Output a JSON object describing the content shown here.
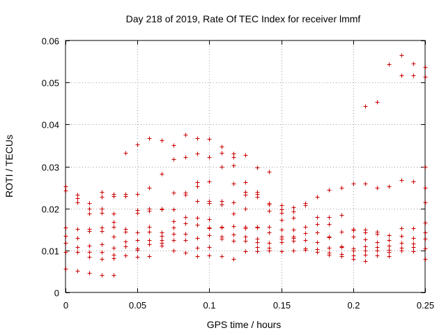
{
  "chart_data": {
    "type": "scatter",
    "title": "Day 218 of 2019, Rate Of TEC Index for receiver lmmf",
    "xlabel": "GPS time / hours",
    "ylabel": "ROTI / TECUs",
    "xlim": [
      0,
      0.25
    ],
    "ylim": [
      0,
      0.06
    ],
    "xticks": [
      "0",
      "0.05",
      "0.1",
      "0.15",
      "0.2",
      "0.25"
    ],
    "yticks": [
      "0",
      "0.01",
      "0.02",
      "0.03",
      "0.04",
      "0.05",
      "0.06"
    ],
    "grid": true,
    "marker": "+",
    "color": "#cc0000",
    "series": [
      {
        "name": "ROTI",
        "points": [
          [
            0.0,
            0.0253
          ],
          [
            0.0,
            0.0243
          ],
          [
            0.0,
            0.0155
          ],
          [
            0.0,
            0.0135
          ],
          [
            0.0,
            0.0118
          ],
          [
            0.0,
            0.0097
          ],
          [
            0.0,
            0.0056
          ],
          [
            0.0083,
            0.0233
          ],
          [
            0.0083,
            0.0225
          ],
          [
            0.0083,
            0.0215
          ],
          [
            0.0083,
            0.0152
          ],
          [
            0.0083,
            0.013
          ],
          [
            0.0083,
            0.0108
          ],
          [
            0.0083,
            0.0097
          ],
          [
            0.0083,
            0.0051
          ],
          [
            0.0167,
            0.0213
          ],
          [
            0.0167,
            0.02
          ],
          [
            0.0167,
            0.0187
          ],
          [
            0.0167,
            0.0152
          ],
          [
            0.0167,
            0.0147
          ],
          [
            0.0167,
            0.0112
          ],
          [
            0.0167,
            0.0097
          ],
          [
            0.0167,
            0.0085
          ],
          [
            0.0167,
            0.0047
          ],
          [
            0.025,
            0.024
          ],
          [
            0.025,
            0.0227
          ],
          [
            0.025,
            0.02
          ],
          [
            0.025,
            0.019
          ],
          [
            0.025,
            0.0155
          ],
          [
            0.025,
            0.0147
          ],
          [
            0.025,
            0.0115
          ],
          [
            0.025,
            0.0097
          ],
          [
            0.025,
            0.008
          ],
          [
            0.025,
            0.0042
          ],
          [
            0.0333,
            0.0235
          ],
          [
            0.0333,
            0.023
          ],
          [
            0.0333,
            0.0187
          ],
          [
            0.0333,
            0.0168
          ],
          [
            0.0333,
            0.0157
          ],
          [
            0.0333,
            0.0133
          ],
          [
            0.0333,
            0.0107
          ],
          [
            0.0333,
            0.009
          ],
          [
            0.0333,
            0.0081
          ],
          [
            0.0333,
            0.0042
          ],
          [
            0.0417,
            0.0333
          ],
          [
            0.0417,
            0.0234
          ],
          [
            0.0417,
            0.023
          ],
          [
            0.0417,
            0.0152
          ],
          [
            0.0417,
            0.0145
          ],
          [
            0.0417,
            0.0122
          ],
          [
            0.0417,
            0.011
          ],
          [
            0.0417,
            0.0088
          ],
          [
            0.05,
            0.0352
          ],
          [
            0.05,
            0.0235
          ],
          [
            0.05,
            0.0196
          ],
          [
            0.05,
            0.019
          ],
          [
            0.05,
            0.0143
          ],
          [
            0.05,
            0.0125
          ],
          [
            0.05,
            0.0105
          ],
          [
            0.05,
            0.0102
          ],
          [
            0.05,
            0.0085
          ],
          [
            0.0583,
            0.0367
          ],
          [
            0.0583,
            0.025
          ],
          [
            0.0583,
            0.02
          ],
          [
            0.0583,
            0.0195
          ],
          [
            0.0583,
            0.0157
          ],
          [
            0.0583,
            0.0145
          ],
          [
            0.0583,
            0.0125
          ],
          [
            0.0583,
            0.0115
          ],
          [
            0.0583,
            0.0087
          ],
          [
            0.0667,
            0.0362
          ],
          [
            0.0667,
            0.0283
          ],
          [
            0.0667,
            0.02
          ],
          [
            0.0667,
            0.0197
          ],
          [
            0.0667,
            0.0143
          ],
          [
            0.0667,
            0.0135
          ],
          [
            0.0667,
            0.0125
          ],
          [
            0.0667,
            0.0118
          ],
          [
            0.0667,
            0.0112
          ],
          [
            0.075,
            0.035
          ],
          [
            0.075,
            0.0318
          ],
          [
            0.075,
            0.0237
          ],
          [
            0.075,
            0.0198
          ],
          [
            0.075,
            0.017
          ],
          [
            0.075,
            0.0155
          ],
          [
            0.075,
            0.014
          ],
          [
            0.075,
            0.0125
          ],
          [
            0.075,
            0.01
          ],
          [
            0.0833,
            0.0375
          ],
          [
            0.0833,
            0.0323
          ],
          [
            0.0833,
            0.0237
          ],
          [
            0.0833,
            0.0233
          ],
          [
            0.0833,
            0.018
          ],
          [
            0.0833,
            0.0165
          ],
          [
            0.0833,
            0.014
          ],
          [
            0.0833,
            0.0125
          ],
          [
            0.0833,
            0.0095
          ],
          [
            0.0917,
            0.0368
          ],
          [
            0.0917,
            0.033
          ],
          [
            0.0917,
            0.0262
          ],
          [
            0.0917,
            0.0253
          ],
          [
            0.0917,
            0.0217
          ],
          [
            0.0917,
            0.0178
          ],
          [
            0.0917,
            0.0162
          ],
          [
            0.0917,
            0.013
          ],
          [
            0.0917,
            0.0107
          ],
          [
            0.0917,
            0.0087
          ],
          [
            0.1,
            0.0365
          ],
          [
            0.1,
            0.0323
          ],
          [
            0.1,
            0.0265
          ],
          [
            0.1,
            0.0218
          ],
          [
            0.1,
            0.0212
          ],
          [
            0.1,
            0.0175
          ],
          [
            0.1,
            0.0155
          ],
          [
            0.1,
            0.0153
          ],
          [
            0.1,
            0.0137
          ],
          [
            0.1,
            0.0108
          ],
          [
            0.1,
            0.0088
          ],
          [
            0.1083,
            0.0348
          ],
          [
            0.1083,
            0.0332
          ],
          [
            0.1083,
            0.03
          ],
          [
            0.1083,
            0.0218
          ],
          [
            0.1083,
            0.021
          ],
          [
            0.1083,
            0.0157
          ],
          [
            0.1083,
            0.0155
          ],
          [
            0.1083,
            0.0133
          ],
          [
            0.1083,
            0.0128
          ],
          [
            0.1083,
            0.0087
          ],
          [
            0.1167,
            0.033
          ],
          [
            0.1167,
            0.0323
          ],
          [
            0.1167,
            0.0302
          ],
          [
            0.1167,
            0.026
          ],
          [
            0.1167,
            0.0215
          ],
          [
            0.1167,
            0.0188
          ],
          [
            0.1167,
            0.0158
          ],
          [
            0.1167,
            0.0138
          ],
          [
            0.1167,
            0.0123
          ],
          [
            0.1167,
            0.008
          ],
          [
            0.125,
            0.0327
          ],
          [
            0.125,
            0.0263
          ],
          [
            0.125,
            0.024
          ],
          [
            0.125,
            0.0233
          ],
          [
            0.125,
            0.02
          ],
          [
            0.125,
            0.0157
          ],
          [
            0.125,
            0.0153
          ],
          [
            0.125,
            0.0133
          ],
          [
            0.125,
            0.0123
          ],
          [
            0.125,
            0.0098
          ],
          [
            0.1333,
            0.0298
          ],
          [
            0.1333,
            0.024
          ],
          [
            0.1333,
            0.0235
          ],
          [
            0.1333,
            0.0227
          ],
          [
            0.1333,
            0.0157
          ],
          [
            0.1333,
            0.0155
          ],
          [
            0.1333,
            0.0128
          ],
          [
            0.1333,
            0.012
          ],
          [
            0.1333,
            0.0108
          ],
          [
            0.1333,
            0.0098
          ],
          [
            0.1417,
            0.0288
          ],
          [
            0.1417,
            0.0213
          ],
          [
            0.1417,
            0.021
          ],
          [
            0.1417,
            0.0195
          ],
          [
            0.1417,
            0.0157
          ],
          [
            0.1417,
            0.0143
          ],
          [
            0.1417,
            0.0118
          ],
          [
            0.1417,
            0.0107
          ],
          [
            0.1417,
            0.01
          ],
          [
            0.15,
            0.0207
          ],
          [
            0.15,
            0.0198
          ],
          [
            0.15,
            0.019
          ],
          [
            0.15,
            0.0173
          ],
          [
            0.15,
            0.015
          ],
          [
            0.15,
            0.0133
          ],
          [
            0.15,
            0.0128
          ],
          [
            0.15,
            0.012
          ],
          [
            0.15,
            0.0098
          ],
          [
            0.1583,
            0.0203
          ],
          [
            0.1583,
            0.0192
          ],
          [
            0.1583,
            0.0178
          ],
          [
            0.1583,
            0.015
          ],
          [
            0.1583,
            0.0133
          ],
          [
            0.1583,
            0.013
          ],
          [
            0.1583,
            0.0123
          ],
          [
            0.1583,
            0.01
          ],
          [
            0.1667,
            0.0212
          ],
          [
            0.1667,
            0.0208
          ],
          [
            0.1667,
            0.0157
          ],
          [
            0.1667,
            0.0142
          ],
          [
            0.1667,
            0.0125
          ],
          [
            0.1667,
            0.0105
          ],
          [
            0.1667,
            0.0102
          ],
          [
            0.175,
            0.0228
          ],
          [
            0.175,
            0.018
          ],
          [
            0.175,
            0.0163
          ],
          [
            0.175,
            0.0143
          ],
          [
            0.175,
            0.012
          ],
          [
            0.175,
            0.0103
          ],
          [
            0.175,
            0.0097
          ],
          [
            0.1833,
            0.0245
          ],
          [
            0.1833,
            0.018
          ],
          [
            0.1833,
            0.0163
          ],
          [
            0.1833,
            0.0133
          ],
          [
            0.1833,
            0.0132
          ],
          [
            0.1833,
            0.0107
          ],
          [
            0.1833,
            0.0095
          ],
          [
            0.1833,
            0.009
          ],
          [
            0.1917,
            0.025
          ],
          [
            0.1917,
            0.0185
          ],
          [
            0.1917,
            0.0145
          ],
          [
            0.1917,
            0.011
          ],
          [
            0.1917,
            0.0108
          ],
          [
            0.1917,
            0.0092
          ],
          [
            0.1917,
            0.0087
          ],
          [
            0.2,
            0.026
          ],
          [
            0.2,
            0.0152
          ],
          [
            0.2,
            0.0148
          ],
          [
            0.2,
            0.0133
          ],
          [
            0.2,
            0.0105
          ],
          [
            0.2,
            0.01
          ],
          [
            0.2,
            0.0088
          ],
          [
            0.2,
            0.008
          ],
          [
            0.2083,
            0.0443
          ],
          [
            0.2083,
            0.026
          ],
          [
            0.2083,
            0.015
          ],
          [
            0.2083,
            0.0143
          ],
          [
            0.2083,
            0.0127
          ],
          [
            0.2083,
            0.011
          ],
          [
            0.2083,
            0.01
          ],
          [
            0.2083,
            0.009
          ],
          [
            0.2083,
            0.0075
          ],
          [
            0.2167,
            0.0453
          ],
          [
            0.2167,
            0.025
          ],
          [
            0.2167,
            0.0145
          ],
          [
            0.2167,
            0.014
          ],
          [
            0.2167,
            0.012
          ],
          [
            0.2167,
            0.0108
          ],
          [
            0.2167,
            0.01
          ],
          [
            0.2167,
            0.0088
          ],
          [
            0.225,
            0.0543
          ],
          [
            0.225,
            0.0253
          ],
          [
            0.225,
            0.0137
          ],
          [
            0.225,
            0.0125
          ],
          [
            0.225,
            0.0112
          ],
          [
            0.225,
            0.0102
          ],
          [
            0.225,
            0.0097
          ],
          [
            0.225,
            0.0087
          ],
          [
            0.2333,
            0.0565
          ],
          [
            0.2333,
            0.0517
          ],
          [
            0.2333,
            0.0268
          ],
          [
            0.2333,
            0.0153
          ],
          [
            0.2333,
            0.0135
          ],
          [
            0.2333,
            0.0118
          ],
          [
            0.2333,
            0.0107
          ],
          [
            0.2333,
            0.01
          ],
          [
            0.2417,
            0.0545
          ],
          [
            0.2417,
            0.0517
          ],
          [
            0.2417,
            0.0265
          ],
          [
            0.2417,
            0.0153
          ],
          [
            0.2417,
            0.013
          ],
          [
            0.2417,
            0.0117
          ],
          [
            0.2417,
            0.0108
          ],
          [
            0.2417,
            0.0098
          ],
          [
            0.25,
            0.0537
          ],
          [
            0.25,
            0.0513
          ],
          [
            0.25,
            0.03
          ],
          [
            0.25,
            0.025
          ],
          [
            0.25,
            0.0215
          ],
          [
            0.25,
            0.0167
          ],
          [
            0.25,
            0.0143
          ],
          [
            0.25,
            0.0128
          ],
          [
            0.25,
            0.0105
          ],
          [
            0.25,
            0.008
          ]
        ]
      }
    ]
  }
}
